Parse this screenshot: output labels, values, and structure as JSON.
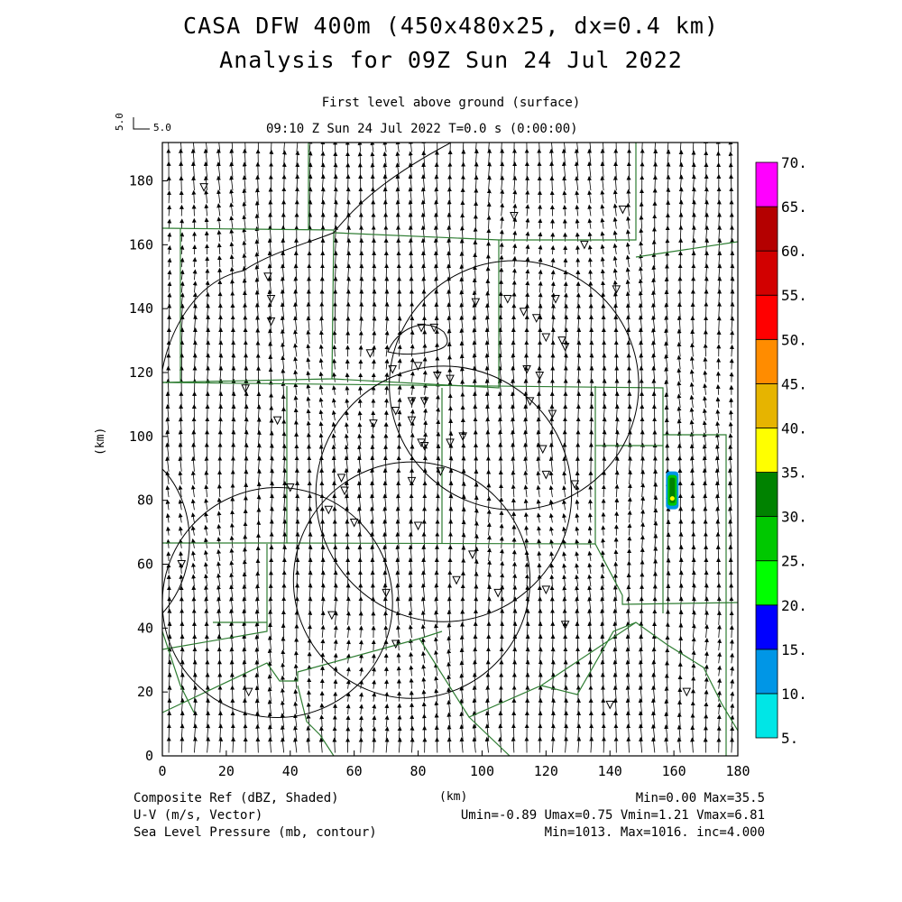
{
  "header": {
    "title_line1": "CASA DFW 400m (450x480x25, dx=0.4 km)",
    "title_line2": "Analysis for 09Z Sun 24 Jul 2022",
    "subtitle": "First level above ground (surface)",
    "time_line": "09:10 Z Sun 24 Jul 2022    T=0.0 s (0:00:00)",
    "vector_scale_label": "5.0",
    "vector_scale_rot": "5.0"
  },
  "footer": {
    "left": [
      "Composite Ref (dBZ, Shaded)",
      "U-V (m/s, Vector)",
      "Sea Level Pressure (mb, contour)"
    ],
    "right": [
      "Min=0.00 Max=35.5",
      "Umin=-0.89 Umax=0.75 Vmin=1.21 Vmax=6.81",
      "Min=1013. Max=1016. inc=4.000"
    ]
  },
  "colors": {
    "boundary": "#2e7d32",
    "contour": "#000000",
    "colorbar": [
      "#00e6e6",
      "#0096e6",
      "#0000ff",
      "#00ff00",
      "#00c800",
      "#008200",
      "#ffff00",
      "#e6b400",
      "#ff8c00",
      "#ff0000",
      "#d20000",
      "#b40000",
      "#ff00ff"
    ]
  },
  "chart_data": {
    "type": "heatmap",
    "xlabel": "(km)",
    "ylabel": "(km)",
    "xlim": [
      0,
      180
    ],
    "ylim": [
      0,
      192
    ],
    "xticks": [
      0,
      20,
      40,
      60,
      80,
      100,
      120,
      140,
      160,
      180
    ],
    "yticks": [
      0,
      20,
      40,
      60,
      80,
      100,
      120,
      140,
      160,
      180
    ],
    "colorbar_levels": [
      5,
      10,
      15,
      20,
      25,
      30,
      35,
      40,
      45,
      50,
      55,
      60,
      65,
      70
    ],
    "colorbar_labels": [
      "5.",
      "10.",
      "15.",
      "20.",
      "25.",
      "30.",
      "35.",
      "40.",
      "45.",
      "50.",
      "55.",
      "60.",
      "65.",
      "70."
    ],
    "reflectivity_cell": {
      "x": 159.5,
      "y": 82,
      "max_dbz": 35.5
    },
    "radar_rings": [
      {
        "cx": 36,
        "cy": 48,
        "r": 36
      },
      {
        "cx": 78,
        "cy": 55,
        "r": 37
      },
      {
        "cx": 88,
        "cy": 82,
        "r": 40
      },
      {
        "cx": 110,
        "cy": 116,
        "r": 39
      }
    ],
    "wind": {
      "u_mean": -0.1,
      "v_mean": 4.0,
      "u_min": -0.89,
      "u_max": 0.75,
      "v_min": 1.21,
      "v_max": 6.81
    },
    "station_markers": [
      [
        13,
        178
      ],
      [
        33,
        150
      ],
      [
        34,
        143
      ],
      [
        34,
        136
      ],
      [
        26,
        115
      ],
      [
        36,
        105
      ],
      [
        40,
        84
      ],
      [
        65,
        126
      ],
      [
        72,
        121
      ],
      [
        80,
        122
      ],
      [
        81,
        134
      ],
      [
        85,
        134
      ],
      [
        86,
        119
      ],
      [
        90,
        118
      ],
      [
        78,
        111
      ],
      [
        82,
        111
      ],
      [
        73,
        108
      ],
      [
        66,
        104
      ],
      [
        78,
        105
      ],
      [
        81,
        98
      ],
      [
        82,
        97
      ],
      [
        90,
        98
      ],
      [
        94,
        100
      ],
      [
        87,
        89
      ],
      [
        78,
        86
      ],
      [
        98,
        142
      ],
      [
        108,
        143
      ],
      [
        113,
        139
      ],
      [
        117,
        137
      ],
      [
        120,
        131
      ],
      [
        125,
        130
      ],
      [
        126,
        128
      ],
      [
        114,
        121
      ],
      [
        118,
        119
      ],
      [
        115,
        111
      ],
      [
        122,
        107
      ],
      [
        119,
        96
      ],
      [
        120,
        88
      ],
      [
        129,
        85
      ],
      [
        123,
        143
      ],
      [
        132,
        160
      ],
      [
        142,
        146
      ],
      [
        144,
        171
      ],
      [
        110,
        169
      ],
      [
        56,
        87
      ],
      [
        57,
        83
      ],
      [
        52,
        77
      ],
      [
        60,
        73
      ],
      [
        80,
        72
      ],
      [
        97,
        63
      ],
      [
        92,
        55
      ],
      [
        105,
        51
      ],
      [
        120,
        52
      ],
      [
        126,
        41
      ],
      [
        53,
        44
      ],
      [
        70,
        51
      ],
      [
        73,
        35
      ],
      [
        6,
        60
      ],
      [
        27,
        20
      ],
      [
        140,
        16
      ],
      [
        164,
        20
      ]
    ]
  }
}
